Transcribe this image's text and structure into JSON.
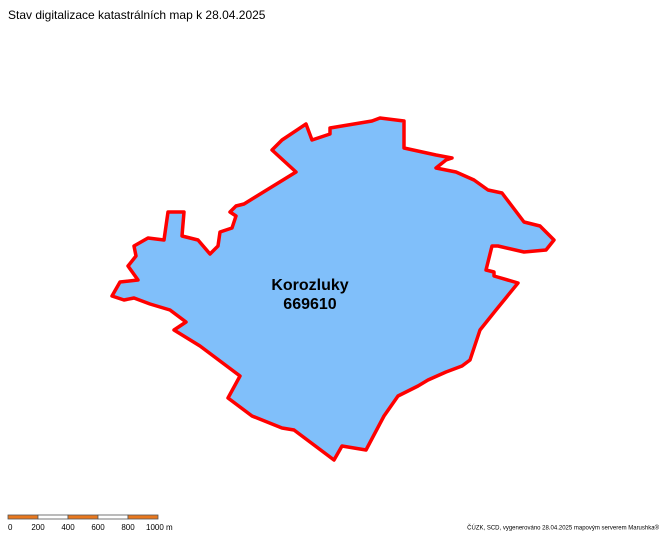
{
  "title": "Stav digitalizace katastrálních map k 28.04.2025",
  "area": {
    "name": "Korozluky",
    "code": "669610"
  },
  "scale_bar": {
    "labels": [
      "0",
      "200",
      "400",
      "600",
      "800",
      "1000 m"
    ]
  },
  "credit": "ČÚZK, SCD, vygenerováno 28.04.2025 mapovým serverem Marushka®"
}
